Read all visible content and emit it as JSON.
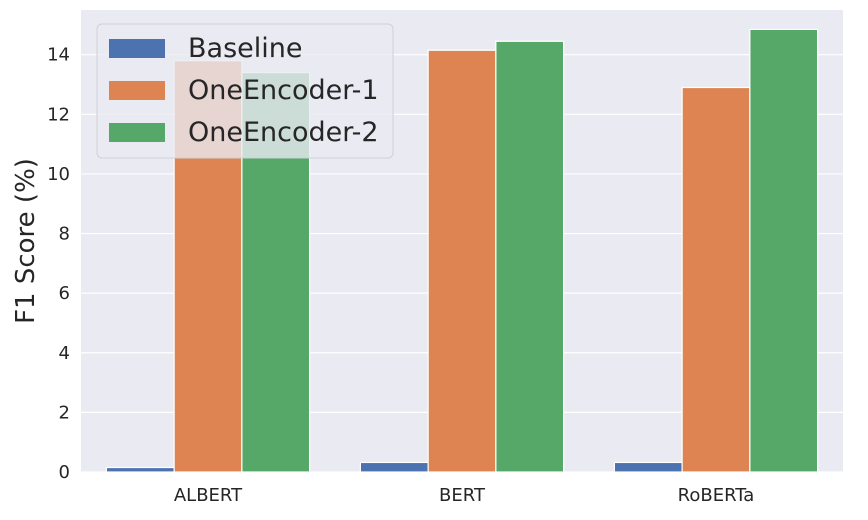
{
  "chart_data": {
    "type": "bar",
    "title": "",
    "xlabel": "",
    "ylabel": "F1 Score (%)",
    "categories": [
      "ALBERT",
      "BERT",
      "RoBERTa"
    ],
    "series": [
      {
        "name": "Baseline",
        "values": [
          0.15,
          0.32,
          0.32
        ],
        "color": "#4c72b0"
      },
      {
        "name": "OneEncoder-1",
        "values": [
          13.8,
          14.15,
          12.9
        ],
        "color": "#dd8452"
      },
      {
        "name": "OneEncoder-2",
        "values": [
          13.4,
          14.45,
          14.85
        ],
        "color": "#55a868"
      }
    ],
    "ylim": [
      0,
      15.5
    ],
    "yticks": [
      0,
      2,
      4,
      6,
      8,
      10,
      12,
      14
    ],
    "grid": true,
    "background": "#eaeaf2",
    "grid_color": "#ffffff",
    "legend_position": "top-left"
  }
}
